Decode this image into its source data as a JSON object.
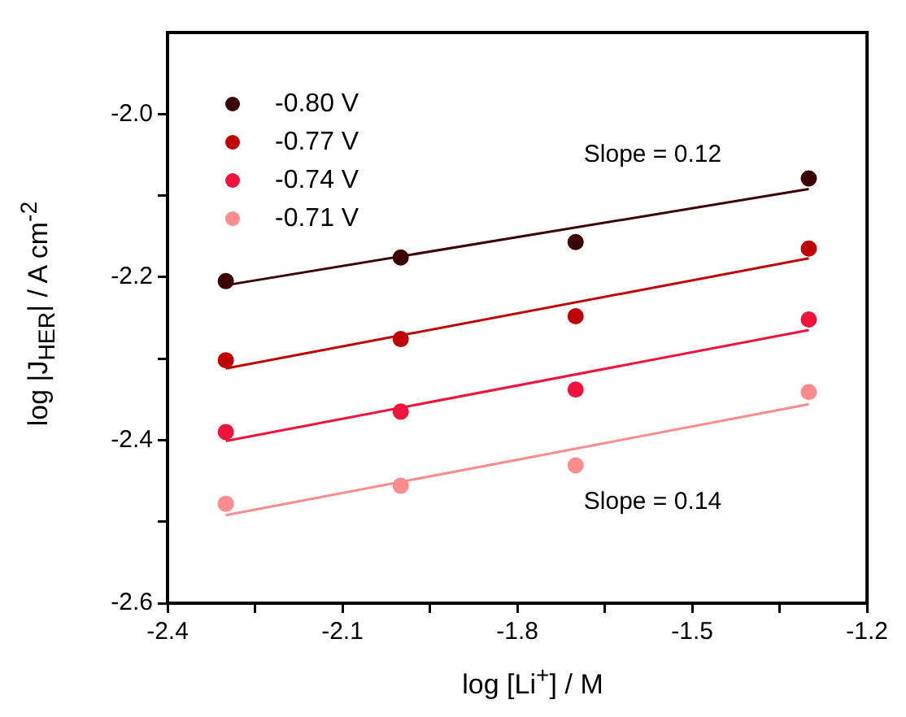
{
  "chart_data": {
    "type": "scatter",
    "xlabel": "log [Li$^{+}$] / M",
    "ylabel": "log |J$_{HER}$| / A cm$^{-2}$",
    "xlim": [
      -2.4,
      -1.2
    ],
    "xticks": [
      -2.4,
      {
        "value": -2.25,
        "label": null
      },
      -2.1,
      {
        "value": -1.95,
        "label": null
      },
      -1.8,
      {
        "value": -1.65,
        "label": null
      },
      -1.5,
      {
        "value": -1.35,
        "label": null
      },
      -1.2
    ],
    "ylim": [
      -2.6,
      -1.9
    ],
    "yticks": [
      -2.6,
      {
        "value": -2.5,
        "label": null
      },
      -2.4,
      {
        "value": -2.3,
        "label": null
      },
      -2.2,
      {
        "value": -2.1,
        "label": null
      },
      {
        "value": -2.0,
        "label": "-2.0"
      }
    ],
    "grid": false,
    "legend": "top left",
    "marker": "circle",
    "series": [
      {
        "name": "-0.80 V",
        "color": "#3d0000",
        "x": [
          -2.3,
          -2.0,
          -1.7,
          -1.3
        ],
        "values": [
          -2.205,
          -2.176,
          -2.157,
          -2.079
        ]
      },
      {
        "name": "-0.77 V",
        "color": "#c00000",
        "x": [
          -2.3,
          -2.0,
          -1.7,
          -1.3
        ],
        "values": [
          -2.302,
          -2.276,
          -2.248,
          -2.165
        ]
      },
      {
        "name": "-0.74 V",
        "color": "#f0143c",
        "x": [
          -2.3,
          -2.0,
          -1.7,
          -1.3
        ],
        "values": [
          -2.39,
          -2.365,
          -2.338,
          -2.252
        ]
      },
      {
        "name": "-0.71 V",
        "color": "#ff8c8c",
        "x": [
          -2.3,
          -2.0,
          -1.7,
          -1.3
        ],
        "values": [
          -2.478,
          -2.456,
          -2.431,
          -2.341
        ]
      },
      {
        "type": "line",
        "marker": "none",
        "color": "#3d0000",
        "x": [
          -2.3,
          -1.3
        ],
        "values": [
          -2.21,
          -2.092
        ]
      },
      {
        "type": "line",
        "marker": "none",
        "color": "#c00000",
        "x": [
          -2.3,
          -1.3
        ],
        "values": [
          -2.312,
          -2.177
        ]
      },
      {
        "type": "line",
        "marker": "none",
        "color": "#f0143c",
        "x": [
          -2.3,
          -1.3
        ],
        "values": [
          -2.401,
          -2.265
        ]
      },
      {
        "type": "line",
        "marker": "none",
        "color": "#ff8c8c",
        "x": [
          -2.3,
          -1.3
        ],
        "values": [
          -2.492,
          -2.356
        ]
      }
    ],
    "annotations": [
      "Slope = 0.12",
      "Slope = 0.14"
    ]
  }
}
